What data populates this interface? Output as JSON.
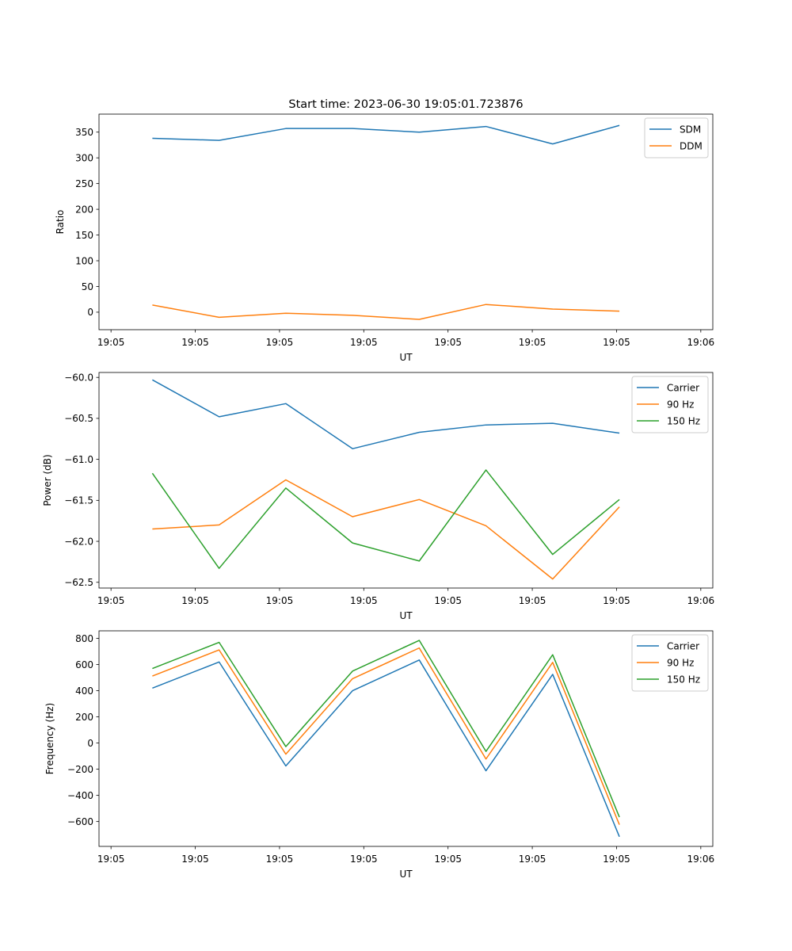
{
  "figure": {
    "title": "Start time: 2023-06-30 19:05:01.723876"
  },
  "colors": {
    "blue": "#1f77b4",
    "orange": "#ff7f0e",
    "green": "#2ca02c"
  },
  "chart_data": [
    {
      "type": "line",
      "title": "Start time: 2023-06-30 19:05:01.723876",
      "xlabel": "UT",
      "ylabel": "Ratio",
      "x_tick_labels": [
        "19:05",
        "19:05",
        "19:05",
        "19:05",
        "19:05",
        "19:05",
        "19:05",
        "19:06"
      ],
      "x": [
        1,
        2,
        3,
        4,
        5,
        6,
        7,
        8
      ],
      "xlim": [
        0.2,
        9.4
      ],
      "ylim": [
        -34,
        385
      ],
      "y_ticks": [
        0,
        50,
        100,
        150,
        200,
        250,
        300,
        350
      ],
      "legend_position": "upper right",
      "grid": false,
      "series": [
        {
          "name": "SDM",
          "color": "#1f77b4",
          "values": [
            338,
            334,
            357,
            357,
            350,
            361,
            327,
            363
          ]
        },
        {
          "name": "DDM",
          "color": "#ff7f0e",
          "values": [
            14,
            -10,
            -2,
            -6,
            -14,
            15,
            6,
            2
          ]
        }
      ]
    },
    {
      "type": "line",
      "title": "",
      "xlabel": "UT",
      "ylabel": "Power (dB)",
      "x_tick_labels": [
        "19:05",
        "19:05",
        "19:05",
        "19:05",
        "19:05",
        "19:05",
        "19:05",
        "19:06"
      ],
      "x": [
        1,
        2,
        3,
        4,
        5,
        6,
        7,
        8
      ],
      "xlim": [
        0.2,
        9.4
      ],
      "ylim": [
        -62.57,
        -59.94
      ],
      "y_ticks": [
        -62.5,
        -62.0,
        -61.5,
        -61.0,
        -60.5,
        -60.0
      ],
      "y_tick_labels": [
        "−62.5",
        "−62.0",
        "−61.5",
        "−61.0",
        "−60.5",
        "−60.0"
      ],
      "legend_position": "upper right",
      "grid": false,
      "series": [
        {
          "name": "Carrier",
          "color": "#1f77b4",
          "values": [
            -60.03,
            -60.48,
            -60.32,
            -60.87,
            -60.67,
            -60.58,
            -60.56,
            -60.68
          ]
        },
        {
          "name": "90 Hz",
          "color": "#ff7f0e",
          "values": [
            -61.85,
            -61.8,
            -61.25,
            -61.7,
            -61.49,
            -61.81,
            -62.46,
            -61.58
          ]
        },
        {
          "name": "150 Hz",
          "color": "#2ca02c",
          "values": [
            -61.17,
            -62.33,
            -61.35,
            -62.02,
            -62.24,
            -61.13,
            -62.16,
            -61.49
          ]
        }
      ]
    },
    {
      "type": "line",
      "title": "",
      "xlabel": "UT",
      "ylabel": "Frequency (Hz)",
      "x_tick_labels": [
        "19:05",
        "19:05",
        "19:05",
        "19:05",
        "19:05",
        "19:05",
        "19:05",
        "19:06"
      ],
      "x": [
        1,
        2,
        3,
        4,
        5,
        6,
        7,
        8
      ],
      "xlim": [
        0.2,
        9.4
      ],
      "ylim": [
        -790,
        858
      ],
      "y_ticks": [
        -600,
        -400,
        -200,
        0,
        200,
        400,
        600,
        800
      ],
      "y_tick_labels": [
        "−600",
        "−400",
        "−200",
        "0",
        "200",
        "400",
        "600",
        "800"
      ],
      "legend_position": "upper right",
      "grid": false,
      "series": [
        {
          "name": "Carrier",
          "color": "#1f77b4",
          "values": [
            420,
            620,
            -175,
            400,
            635,
            -212,
            525,
            -716
          ]
        },
        {
          "name": "90 Hz",
          "color": "#ff7f0e",
          "values": [
            512,
            712,
            -85,
            492,
            727,
            -122,
            617,
            -624
          ]
        },
        {
          "name": "150 Hz",
          "color": "#2ca02c",
          "values": [
            570,
            770,
            -27,
            550,
            785,
            -64,
            675,
            -566
          ]
        }
      ]
    }
  ]
}
